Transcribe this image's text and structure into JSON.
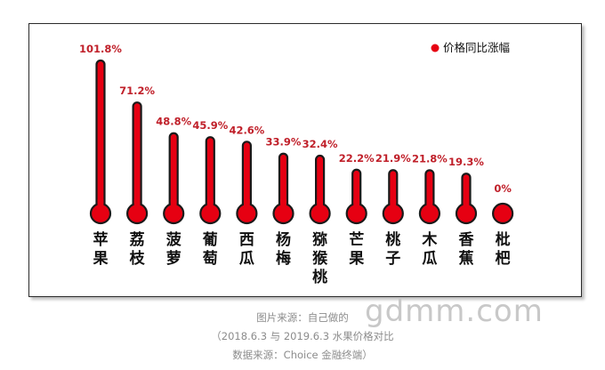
{
  "chart_data": {
    "type": "bar",
    "categories": [
      "苹果",
      "荔枝",
      "菠萝",
      "葡萄",
      "西瓜",
      "杨梅",
      "猕猴桃",
      "芒果",
      "桃子",
      "木瓜",
      "香蕉",
      "枇杷"
    ],
    "series": [
      {
        "name": "价格同比涨幅",
        "values": [
          101.8,
          71.2,
          48.8,
          45.9,
          42.6,
          33.9,
          32.4,
          22.2,
          21.9,
          21.8,
          19.3,
          0
        ],
        "labels": [
          "101.8%",
          "71.2%",
          "48.8%",
          "45.9%",
          "42.6%",
          "33.9%",
          "32.4%",
          "22.2%",
          "21.9%",
          "21.8%",
          "19.3%",
          "0%"
        ]
      }
    ],
    "ylim": [
      0,
      101.8
    ],
    "grid": false,
    "legend_position": "top-right",
    "colors": {
      "bar": "#e60012",
      "outline": "#1a1a1a",
      "label": "#c0202a"
    }
  },
  "footer": {
    "line1": "图片来源：自己做的",
    "line2": "（2018.6.3 与 2019.6.3 水果价格对比",
    "line3": "数据来源：Choice 金融终端）"
  },
  "watermark": "gdmm.com"
}
